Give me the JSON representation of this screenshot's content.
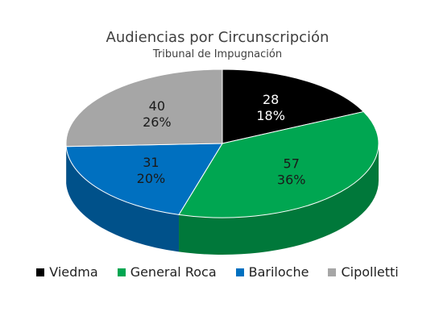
{
  "chart_data": {
    "type": "pie",
    "title": "Audiencias por Circunscripción",
    "subtitle": "Tribunal de Impugnación",
    "legend_position": "bottom",
    "slices": [
      {
        "label": "Viedma",
        "value": 28,
        "percent": "18%",
        "color": "#000000",
        "label_color": "#ffffff"
      },
      {
        "label": "General Roca",
        "value": 57,
        "percent": "36%",
        "color": "#00a651",
        "label_color": "#1a1a1a"
      },
      {
        "label": "Bariloche",
        "value": 31,
        "percent": "20%",
        "color": "#0070c0",
        "label_color": "#1a1a1a"
      },
      {
        "label": "Cipolletti",
        "value": 40,
        "percent": "26%",
        "color": "#a6a6a6",
        "label_color": "#1a1a1a"
      }
    ]
  }
}
